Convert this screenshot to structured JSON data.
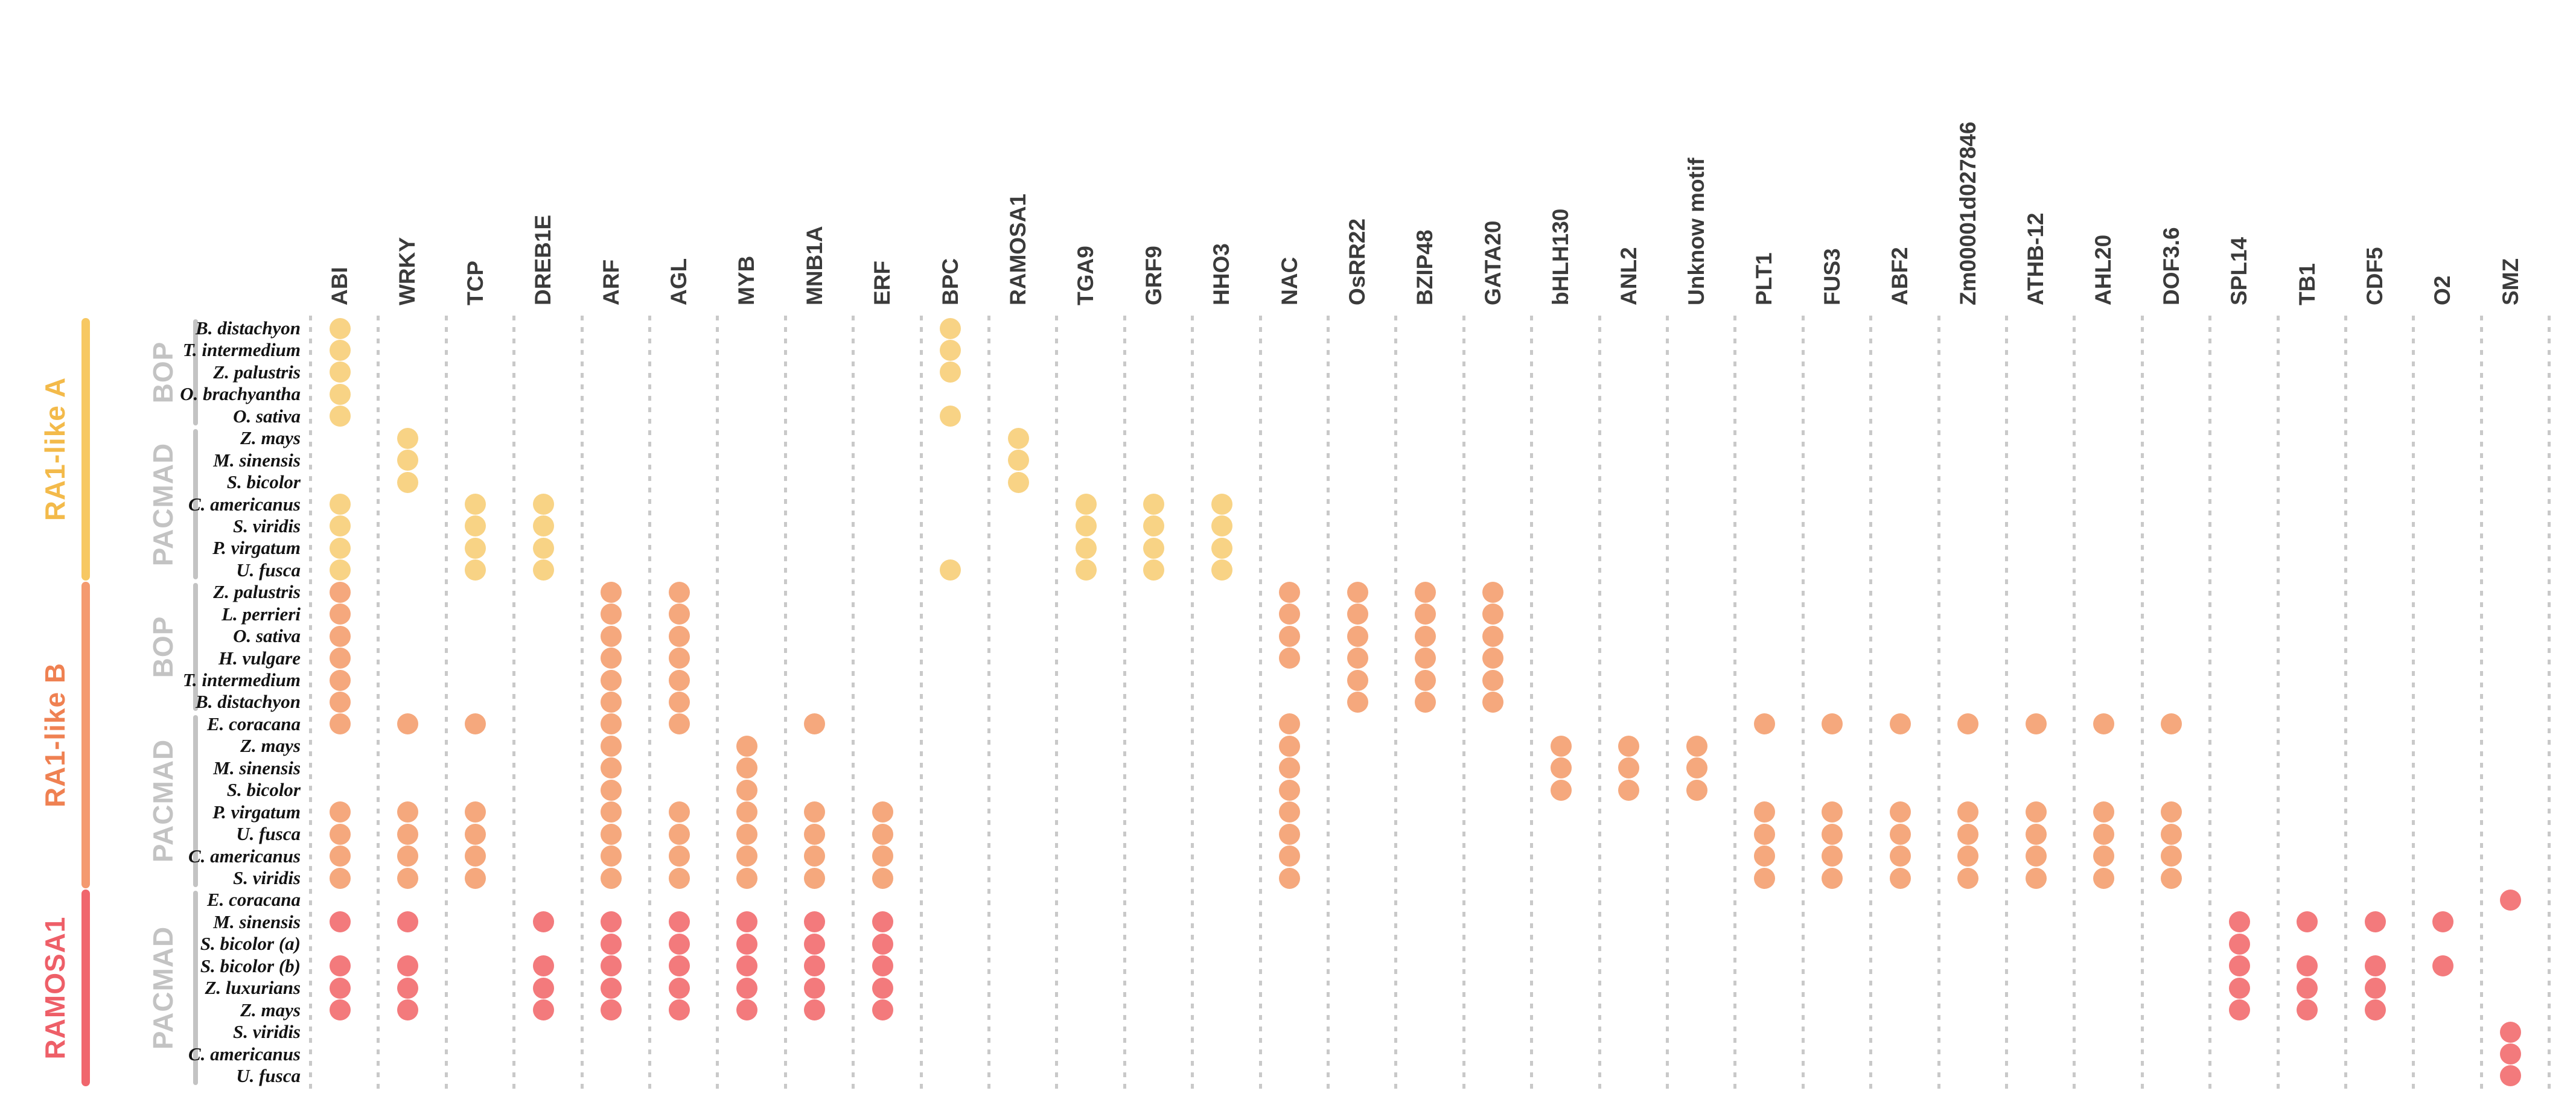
{
  "chart_data": {
    "type": "dot_matrix",
    "title": "",
    "xlabel": "transcription factor binding motifs",
    "ylabel": "species",
    "grid": "dotted-vertical",
    "legend_position": "none",
    "gridline_color": "#c9c9c9",
    "header_color": "#3b3b3b",
    "subgroup_color": "#c3c3c3",
    "columns": [
      "ABI",
      "WRKY",
      "TCP",
      "DREB1E",
      "ARF",
      "AGL",
      "MYB",
      "MNB1A",
      "ERF",
      "BPC",
      "RAMOSA1",
      "TGA9",
      "GRF9",
      "HHO3",
      "NAC",
      "OsRR22",
      "BZIP48",
      "GATA20",
      "bHLH130",
      "ANL2",
      "Unknow motif",
      "PLT1",
      "FUS3",
      "ABF2",
      "Zm00001d027846",
      "ATHB-12",
      "AHL20",
      "DOF3.6",
      "SPL14",
      "TB1",
      "CDF5",
      "O2",
      "SMZ"
    ],
    "clades": [
      {
        "name": "RA1-like A",
        "label_color": "#f3ba4a",
        "bar_color": "#f7c862",
        "dot_color": "#f8d385",
        "subgroups": [
          {
            "name": "BOP",
            "from": 0,
            "to": 4
          },
          {
            "name": "PACMAD",
            "from": 5,
            "to": 11
          }
        ],
        "rows": [
          {
            "species": "B. distachyon",
            "dots": [
              0,
              9
            ]
          },
          {
            "species": "T. intermedium",
            "dots": [
              0,
              9
            ]
          },
          {
            "species": "Z. palustris",
            "dots": [
              0,
              9
            ]
          },
          {
            "species": "O. brachyantha",
            "dots": [
              0
            ]
          },
          {
            "species": "O. sativa",
            "dots": [
              0,
              9
            ]
          },
          {
            "species": "Z. mays",
            "dots": [
              1,
              10
            ]
          },
          {
            "species": "M. sinensis",
            "dots": [
              1,
              10
            ]
          },
          {
            "species": "S. bicolor",
            "dots": [
              1,
              10
            ]
          },
          {
            "species": "C. americanus",
            "dots": [
              0,
              2,
              3,
              11,
              12,
              13
            ]
          },
          {
            "species": "S. viridis",
            "dots": [
              0,
              2,
              3,
              11,
              12,
              13
            ]
          },
          {
            "species": "P. virgatum",
            "dots": [
              0,
              2,
              3,
              11,
              12,
              13
            ]
          },
          {
            "species": "U. fusca",
            "dots": [
              0,
              2,
              3,
              9,
              11,
              12,
              13
            ]
          }
        ]
      },
      {
        "name": "RA1-like B",
        "label_color": "#ef8152",
        "bar_color": "#f49a70",
        "dot_color": "#f5a87d",
        "subgroups": [
          {
            "name": "BOP",
            "from": 0,
            "to": 5
          },
          {
            "name": "PACMAD",
            "from": 6,
            "to": 13
          }
        ],
        "rows": [
          {
            "species": "Z. palustris",
            "dots": [
              0,
              4,
              5,
              14,
              15,
              16,
              17
            ]
          },
          {
            "species": "L. perrieri",
            "dots": [
              0,
              4,
              5,
              14,
              15,
              16,
              17
            ]
          },
          {
            "species": "O. sativa",
            "dots": [
              0,
              4,
              5,
              14,
              15,
              16,
              17
            ]
          },
          {
            "species": "H. vulgare",
            "dots": [
              0,
              4,
              5,
              14,
              15,
              16,
              17
            ]
          },
          {
            "species": "T. intermedium",
            "dots": [
              0,
              4,
              5,
              15,
              16,
              17
            ]
          },
          {
            "species": "B. distachyon",
            "dots": [
              0,
              4,
              5,
              15,
              16,
              17
            ]
          },
          {
            "species": "E. coracana",
            "dots": [
              0,
              1,
              2,
              4,
              5,
              7,
              14,
              21,
              22,
              23,
              24,
              25,
              26,
              27
            ]
          },
          {
            "species": "Z. mays",
            "dots": [
              4,
              6,
              14,
              18,
              19,
              20
            ]
          },
          {
            "species": "M. sinensis",
            "dots": [
              4,
              6,
              14,
              18,
              19,
              20
            ]
          },
          {
            "species": "S. bicolor",
            "dots": [
              4,
              6,
              14,
              18,
              19,
              20
            ]
          },
          {
            "species": "P. virgatum",
            "dots": [
              0,
              1,
              2,
              4,
              5,
              6,
              7,
              8,
              14,
              21,
              22,
              23,
              24,
              25,
              26,
              27
            ]
          },
          {
            "species": "U. fusca",
            "dots": [
              0,
              1,
              2,
              4,
              5,
              6,
              7,
              8,
              14,
              21,
              22,
              23,
              24,
              25,
              26,
              27
            ]
          },
          {
            "species": "C. americanus",
            "dots": [
              0,
              1,
              2,
              4,
              5,
              6,
              7,
              8,
              14,
              21,
              22,
              23,
              24,
              25,
              26,
              27
            ]
          },
          {
            "species": "S. viridis",
            "dots": [
              0,
              1,
              2,
              4,
              5,
              6,
              7,
              8,
              14,
              21,
              22,
              23,
              24,
              25,
              26,
              27
            ]
          }
        ]
      },
      {
        "name": "RAMOSA1",
        "label_color": "#ee5f68",
        "bar_color": "#f0666d",
        "dot_color": "#f37a7c",
        "subgroups": [
          {
            "name": "PACMAD",
            "from": 0,
            "to": 8
          }
        ],
        "rows": [
          {
            "species": "E. coracana",
            "dots": [
              32
            ]
          },
          {
            "species": "M. sinensis",
            "dots": [
              0,
              1,
              3,
              4,
              5,
              6,
              7,
              8,
              28,
              29,
              30,
              31
            ]
          },
          {
            "species": "S. bicolor (a)",
            "dots": [
              4,
              5,
              6,
              7,
              8,
              28
            ]
          },
          {
            "species": "S. bicolor (b)",
            "dots": [
              0,
              1,
              3,
              4,
              5,
              6,
              7,
              8,
              28,
              29,
              30,
              31
            ]
          },
          {
            "species": "Z. luxurians",
            "dots": [
              0,
              1,
              3,
              4,
              5,
              6,
              7,
              8,
              28,
              29,
              30
            ]
          },
          {
            "species": "Z. mays",
            "dots": [
              0,
              1,
              3,
              4,
              5,
              6,
              7,
              8,
              28,
              29,
              30
            ]
          },
          {
            "species": "S. viridis",
            "dots": [
              32
            ]
          },
          {
            "species": "C. americanus",
            "dots": [
              32
            ]
          },
          {
            "species": "U. fusca",
            "dots": [
              32
            ]
          }
        ]
      }
    ]
  }
}
